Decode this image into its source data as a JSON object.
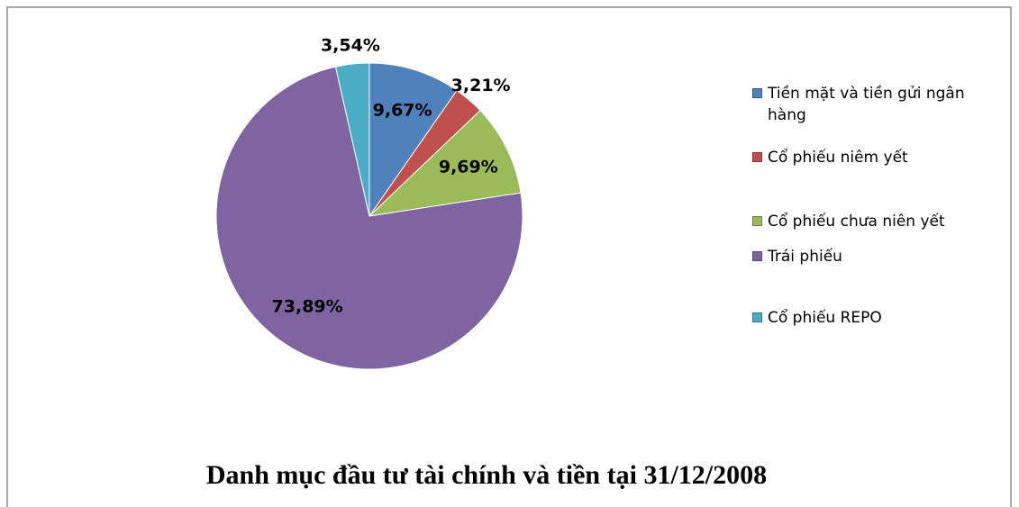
{
  "chart_data": {
    "type": "pie",
    "title": "Danh mục đầu tư tài chính và tiền tại 31/12/2008",
    "categories": [
      "Tiền mặt và tiền gửi ngân hàng",
      "Cổ phiếu niêm yết",
      "Cổ phiếu chưa niên yết",
      "Trái phiếu",
      "Cổ phiếu REPO"
    ],
    "values": [
      9.67,
      3.21,
      9.69,
      73.89,
      3.54
    ],
    "value_labels": [
      "9,67%",
      "3,21%",
      "9,69%",
      "73,89%",
      "3,54%"
    ],
    "colors": [
      "#4f81bd",
      "#c0504d",
      "#9bbb59",
      "#8064a2",
      "#4bacc6"
    ],
    "legend": "right"
  }
}
